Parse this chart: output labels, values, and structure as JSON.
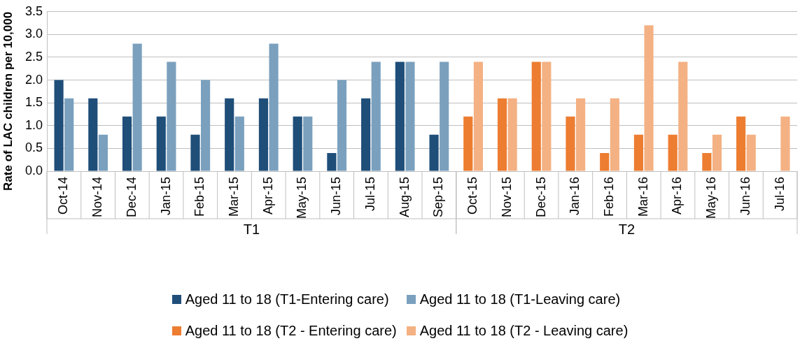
{
  "chart_data": {
    "type": "bar",
    "ylabel": "Rate of LAC children per 10,000",
    "categories": [
      "Oct-14",
      "Nov-14",
      "Dec-14",
      "Jan-15",
      "Feb-15",
      "Mar-15",
      "Apr-15",
      "May-15",
      "Jun-15",
      "Jul-15",
      "Aug-15",
      "Sep-15",
      "Oct-15",
      "Nov-15",
      "Dec-15",
      "Jan-16",
      "Feb-16",
      "Mar-16",
      "Apr-16",
      "May-16",
      "Jun-16",
      "Jul-16"
    ],
    "series": [
      {
        "name": "Aged 11 to 18 (T1-Entering care)",
        "color": "#1f4e79",
        "values": [
          2.0,
          1.6,
          1.2,
          1.2,
          0.8,
          1.6,
          1.6,
          1.2,
          0.4,
          1.6,
          2.4,
          0.8,
          null,
          null,
          null,
          null,
          null,
          null,
          null,
          null,
          null,
          null
        ]
      },
      {
        "name": "Aged 11 to 18 (T1-Leaving care)",
        "color": "#7aa0be",
        "values": [
          1.6,
          0.8,
          2.8,
          2.4,
          2.0,
          1.2,
          2.8,
          1.2,
          2.0,
          2.4,
          2.4,
          2.4,
          null,
          null,
          null,
          null,
          null,
          null,
          null,
          null,
          null,
          null
        ]
      },
      {
        "name": "Aged 11 to 18 (T2 - Entering care)",
        "color": "#ed7d31",
        "values": [
          null,
          null,
          null,
          null,
          null,
          null,
          null,
          null,
          null,
          null,
          null,
          null,
          1.2,
          1.6,
          2.4,
          1.2,
          0.4,
          0.8,
          0.8,
          0.4,
          1.2,
          0
        ]
      },
      {
        "name": "Aged 11 to 18 (T2 - Leaving care)",
        "color": "#f4b183",
        "values": [
          null,
          null,
          null,
          null,
          null,
          null,
          null,
          null,
          null,
          null,
          null,
          null,
          2.4,
          1.6,
          2.4,
          1.6,
          1.6,
          3.2,
          2.4,
          0.8,
          0.8,
          1.2
        ]
      }
    ],
    "annotations": [
      "T1",
      "T2"
    ],
    "ylim": [
      0,
      3.5
    ],
    "yticks": [
      {
        "value": 0,
        "label": "0.0"
      },
      0.5,
      {
        "value": 1,
        "label": "1.0"
      },
      1.5,
      {
        "value": 2,
        "label": "2.0"
      },
      2.5,
      {
        "value": 3,
        "label": "3.0"
      },
      3.5
    ],
    "grid": "y",
    "legend": "bottom"
  }
}
